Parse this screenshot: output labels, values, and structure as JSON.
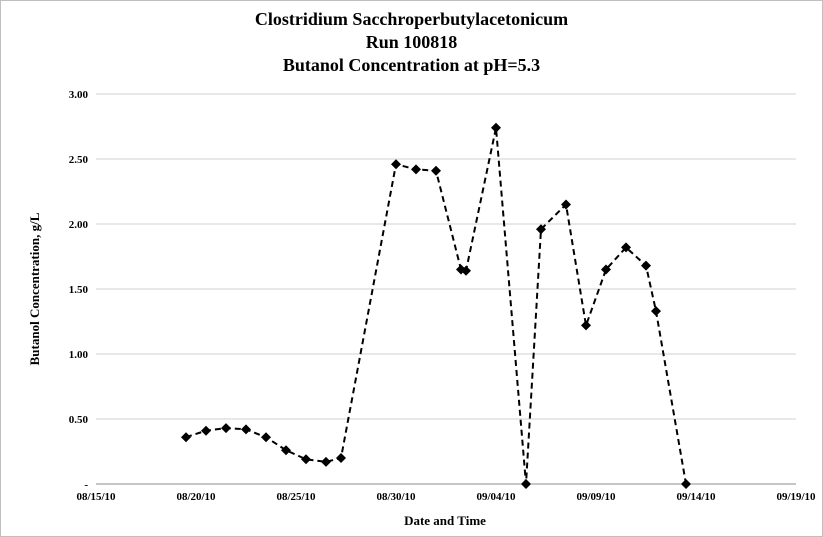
{
  "chart_data": {
    "type": "line",
    "title": [
      "Clostridium Sacchroperbutylacetonicum",
      "Run 100818",
      "Butanol Concentration at pH=5.3"
    ],
    "xlabel": "Date and Time",
    "ylabel": "Butanol Concentration, g/L",
    "x_ticks": [
      "08/15/10",
      "08/20/10",
      "08/25/10",
      "08/30/10",
      "09/04/10",
      "09/09/10",
      "09/14/10",
      "09/19/10"
    ],
    "y_ticks": [
      "-",
      "0.50",
      "1.00",
      "1.50",
      "2.00",
      "2.50",
      "3.00"
    ],
    "xlim": [
      "2010-08-15",
      "2010-09-19"
    ],
    "ylim": [
      0,
      3.0
    ],
    "grid": "horizontal",
    "legend": "none",
    "series": [
      {
        "line_style": "dashed",
        "marker": "diamond",
        "color": "#000000",
        "points": [
          {
            "x": "2010-08-19 12:00",
            "y": 0.36
          },
          {
            "x": "2010-08-20 12:00",
            "y": 0.41
          },
          {
            "x": "2010-08-21 12:00",
            "y": 0.43
          },
          {
            "x": "2010-08-22 12:00",
            "y": 0.42
          },
          {
            "x": "2010-08-23 12:00",
            "y": 0.36
          },
          {
            "x": "2010-08-24 12:00",
            "y": 0.26
          },
          {
            "x": "2010-08-25 12:00",
            "y": 0.19
          },
          {
            "x": "2010-08-26 12:00",
            "y": 0.17
          },
          {
            "x": "2010-08-27 06:00",
            "y": 0.2
          },
          {
            "x": "2010-08-30 00:00",
            "y": 2.46
          },
          {
            "x": "2010-08-31 00:00",
            "y": 2.42
          },
          {
            "x": "2010-09-01 00:00",
            "y": 2.41
          },
          {
            "x": "2010-09-02 06:00",
            "y": 1.65
          },
          {
            "x": "2010-09-02 12:00",
            "y": 1.64
          },
          {
            "x": "2010-09-04 00:00",
            "y": 2.74
          },
          {
            "x": "2010-09-05 12:00",
            "y": 0.0
          },
          {
            "x": "2010-09-06 06:00",
            "y": 1.96
          },
          {
            "x": "2010-09-07 12:00",
            "y": 2.15
          },
          {
            "x": "2010-09-08 12:00",
            "y": 1.22
          },
          {
            "x": "2010-09-09 12:00",
            "y": 1.65
          },
          {
            "x": "2010-09-10 12:00",
            "y": 1.82
          },
          {
            "x": "2010-09-11 12:00",
            "y": 1.68
          },
          {
            "x": "2010-09-12 00:00",
            "y": 1.33
          },
          {
            "x": "2010-09-13 12:00",
            "y": 0.0
          }
        ]
      }
    ]
  }
}
